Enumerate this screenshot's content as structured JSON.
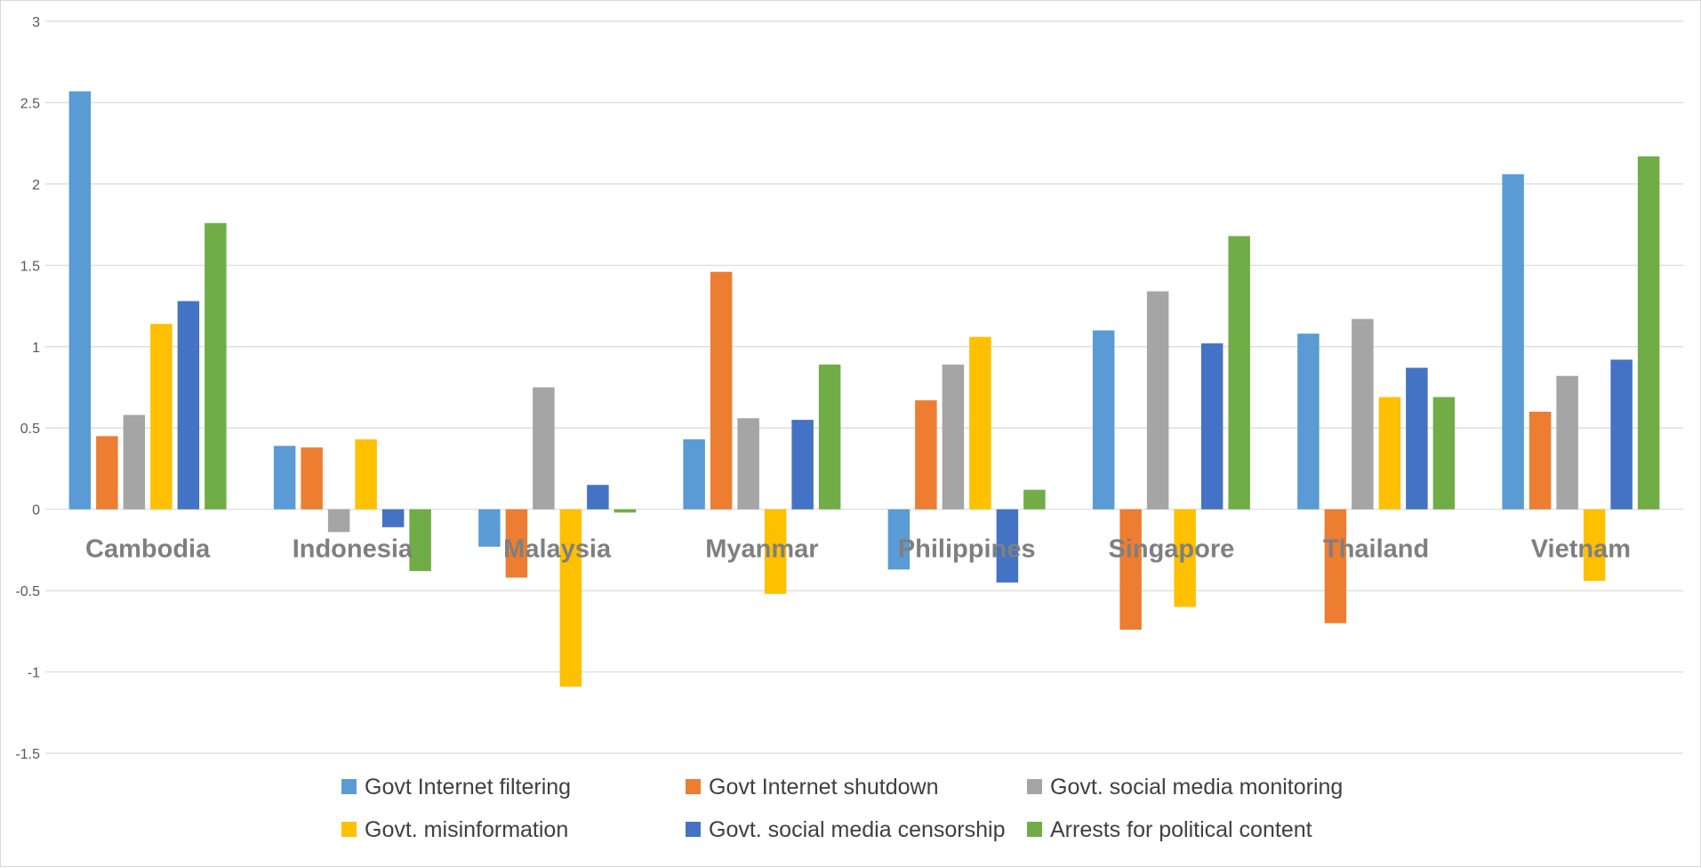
{
  "chart_data": {
    "type": "bar",
    "title": "",
    "xlabel": "",
    "ylabel": "",
    "ylim": [
      -1.5,
      3
    ],
    "yticks": [
      3,
      2.5,
      2,
      1.5,
      1,
      0.5,
      0,
      -0.5,
      -1,
      -1.5
    ],
    "ytick_labels": [
      "3",
      "2.5",
      "2",
      "1.5",
      "1",
      "0.5",
      "0",
      "-0.5",
      "-1",
      "-1.5"
    ],
    "grid": true,
    "legend_position": "bottom",
    "categories": [
      "Cambodia",
      "Indonesia",
      "Malaysia",
      "Myanmar",
      "Philippines",
      "Singapore",
      "Thailand",
      "Vietnam"
    ],
    "series": [
      {
        "name": "Govt Internet filtering",
        "color": "#5b9bd5",
        "values": [
          2.57,
          0.39,
          -0.23,
          0.43,
          -0.37,
          1.1,
          1.08,
          2.06
        ]
      },
      {
        "name": "Govt Internet shutdown",
        "color": "#ed7d31",
        "values": [
          0.45,
          0.38,
          -0.42,
          1.46,
          0.67,
          -0.74,
          -0.7,
          0.6
        ]
      },
      {
        "name": "Govt. social media monitoring",
        "color": "#a5a5a5",
        "values": [
          0.58,
          -0.14,
          0.75,
          0.56,
          0.89,
          1.34,
          1.17,
          0.82
        ]
      },
      {
        "name": "Govt. misinformation",
        "color": "#ffc000",
        "values": [
          1.14,
          0.43,
          -1.09,
          -0.52,
          1.06,
          -0.6,
          0.69,
          -0.44
        ]
      },
      {
        "name": "Govt. social media censorship",
        "color": "#4472c4",
        "values": [
          1.28,
          -0.11,
          0.15,
          0.55,
          -0.45,
          1.02,
          0.87,
          0.92
        ]
      },
      {
        "name": "Arrests for political content",
        "color": "#70ad47",
        "values": [
          1.76,
          -0.38,
          -0.02,
          0.89,
          0.12,
          1.68,
          0.69,
          2.17
        ]
      }
    ]
  }
}
